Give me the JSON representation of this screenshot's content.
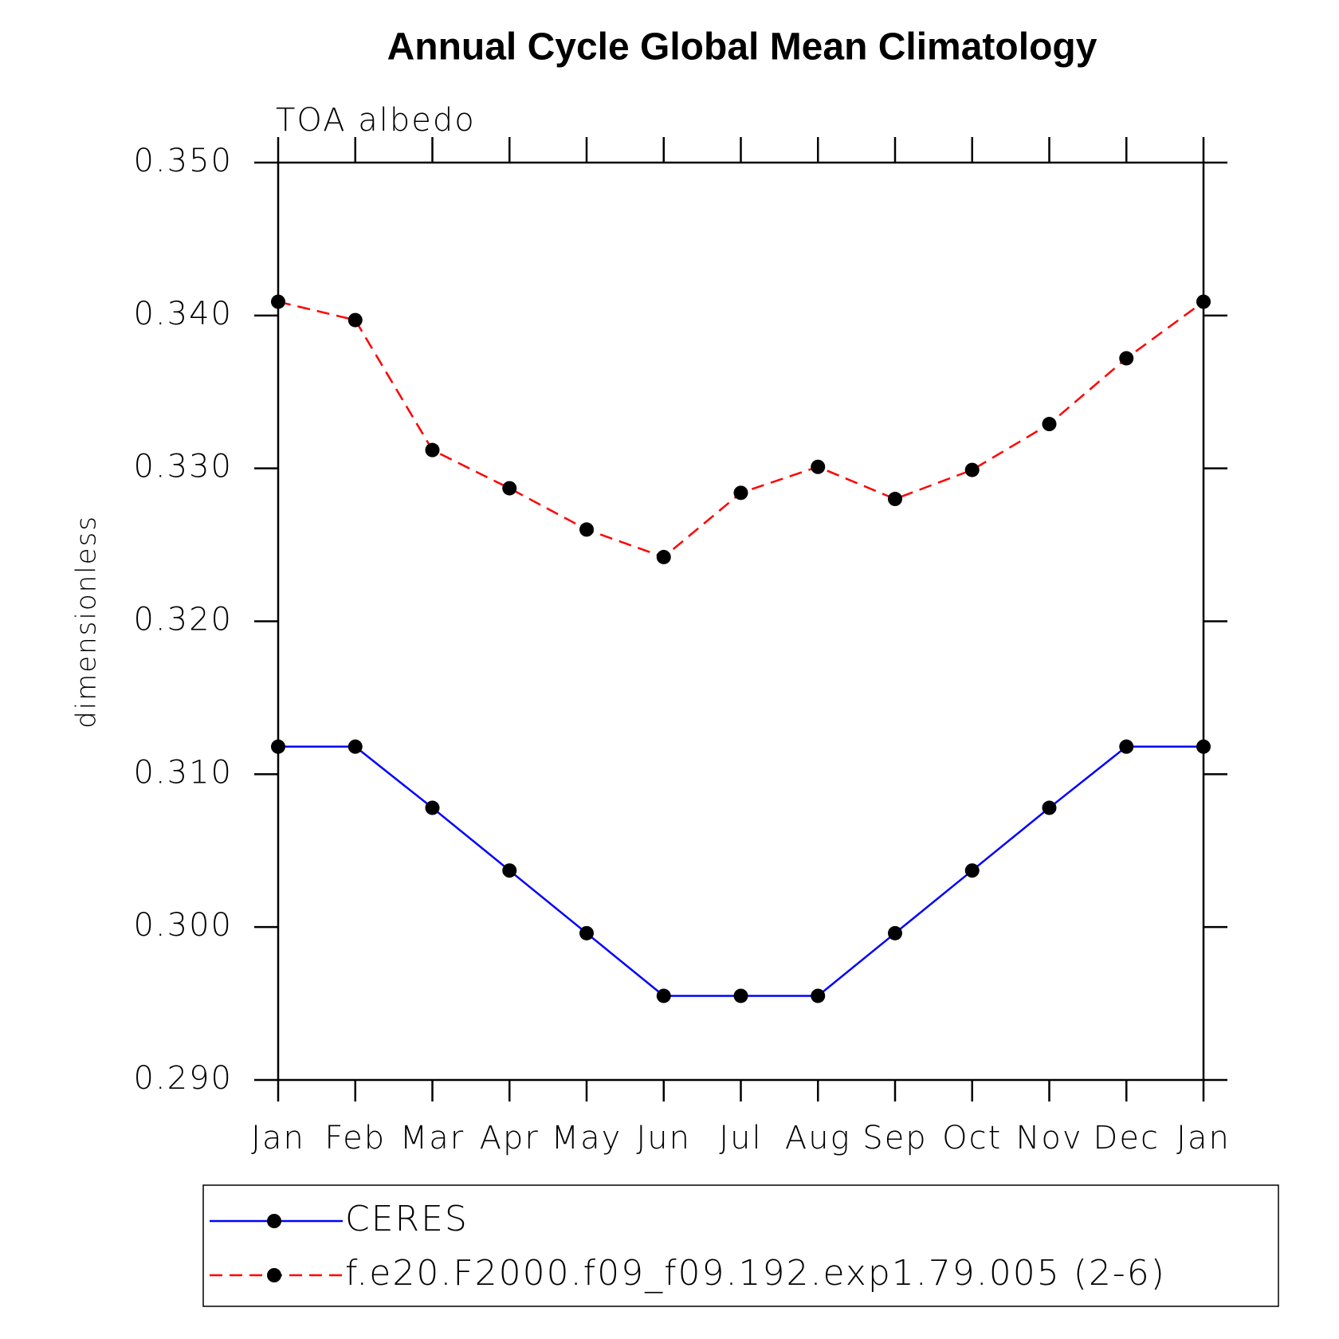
{
  "chart_data": {
    "type": "line",
    "title": "Annual Cycle Global Mean Climatology",
    "subtitle": "TOA albedo",
    "y_label": "dimensionless",
    "categories": [
      "Jan",
      "Feb",
      "Mar",
      "Apr",
      "May",
      "Jun",
      "Jul",
      "Aug",
      "Sep",
      "Oct",
      "Nov",
      "Dec",
      "Jan"
    ],
    "series": [
      {
        "name": "CERES",
        "color": "#0000ff",
        "style": "solid",
        "values": [
          0.3118,
          0.3118,
          0.3078,
          0.3037,
          0.2996,
          0.2955,
          0.2955,
          0.2955,
          0.2996,
          0.3037,
          0.3078,
          0.3118,
          0.3118
        ]
      },
      {
        "name": "f.e20.F2000.f09_f09.192.exp1.79.005 (2-6)",
        "color": "#ff0000",
        "style": "dashed",
        "values": [
          0.3409,
          0.3397,
          0.3312,
          0.3287,
          0.326,
          0.3242,
          0.3284,
          0.3301,
          0.328,
          0.3299,
          0.3329,
          0.3372,
          0.3409
        ]
      }
    ],
    "ylim": [
      0.29,
      0.35
    ],
    "yticks": [
      {
        "value": 0.29,
        "label": "0.290"
      },
      {
        "value": 0.3,
        "label": "0.300"
      },
      {
        "value": 0.31,
        "label": "0.310"
      },
      {
        "value": 0.32,
        "label": "0.320"
      },
      {
        "value": 0.33,
        "label": "0.330"
      },
      {
        "value": 0.34,
        "label": "0.340"
      },
      {
        "value": 0.35,
        "label": "0.350"
      }
    ],
    "grid": false
  }
}
